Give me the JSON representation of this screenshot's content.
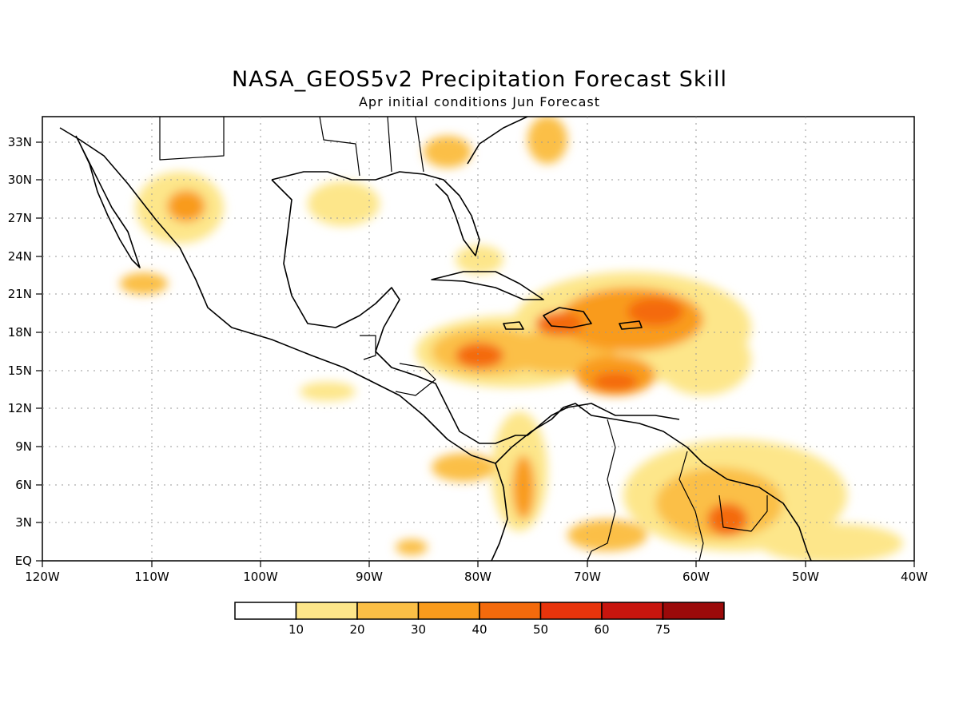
{
  "title": "NASA_GEOS5v2 Precipitation Forecast Skill",
  "subtitle": "Apr initial conditions  Jun Forecast",
  "map": {
    "region": "Caribbean / Central America",
    "lon_range": [
      -120,
      -40
    ],
    "lat_range": [
      0,
      35
    ],
    "gridlines": "dotted"
  },
  "axes": {
    "x_ticks": [
      "120W",
      "110W",
      "100W",
      "90W",
      "80W",
      "70W",
      "60W",
      "50W",
      "40W"
    ],
    "y_ticks": [
      "EQ",
      "3N",
      "6N",
      "9N",
      "12N",
      "15N",
      "18N",
      "21N",
      "24N",
      "27N",
      "30N",
      "33N"
    ]
  },
  "colorbar": {
    "colors": [
      "#ffffff",
      "#fde68a",
      "#fbbf46",
      "#f99b1c",
      "#f46a0c",
      "#e8340c",
      "#c8150e",
      "#9b0a0a"
    ],
    "labels": [
      "10",
      "20",
      "30",
      "40",
      "50",
      "60",
      "75"
    ]
  }
}
